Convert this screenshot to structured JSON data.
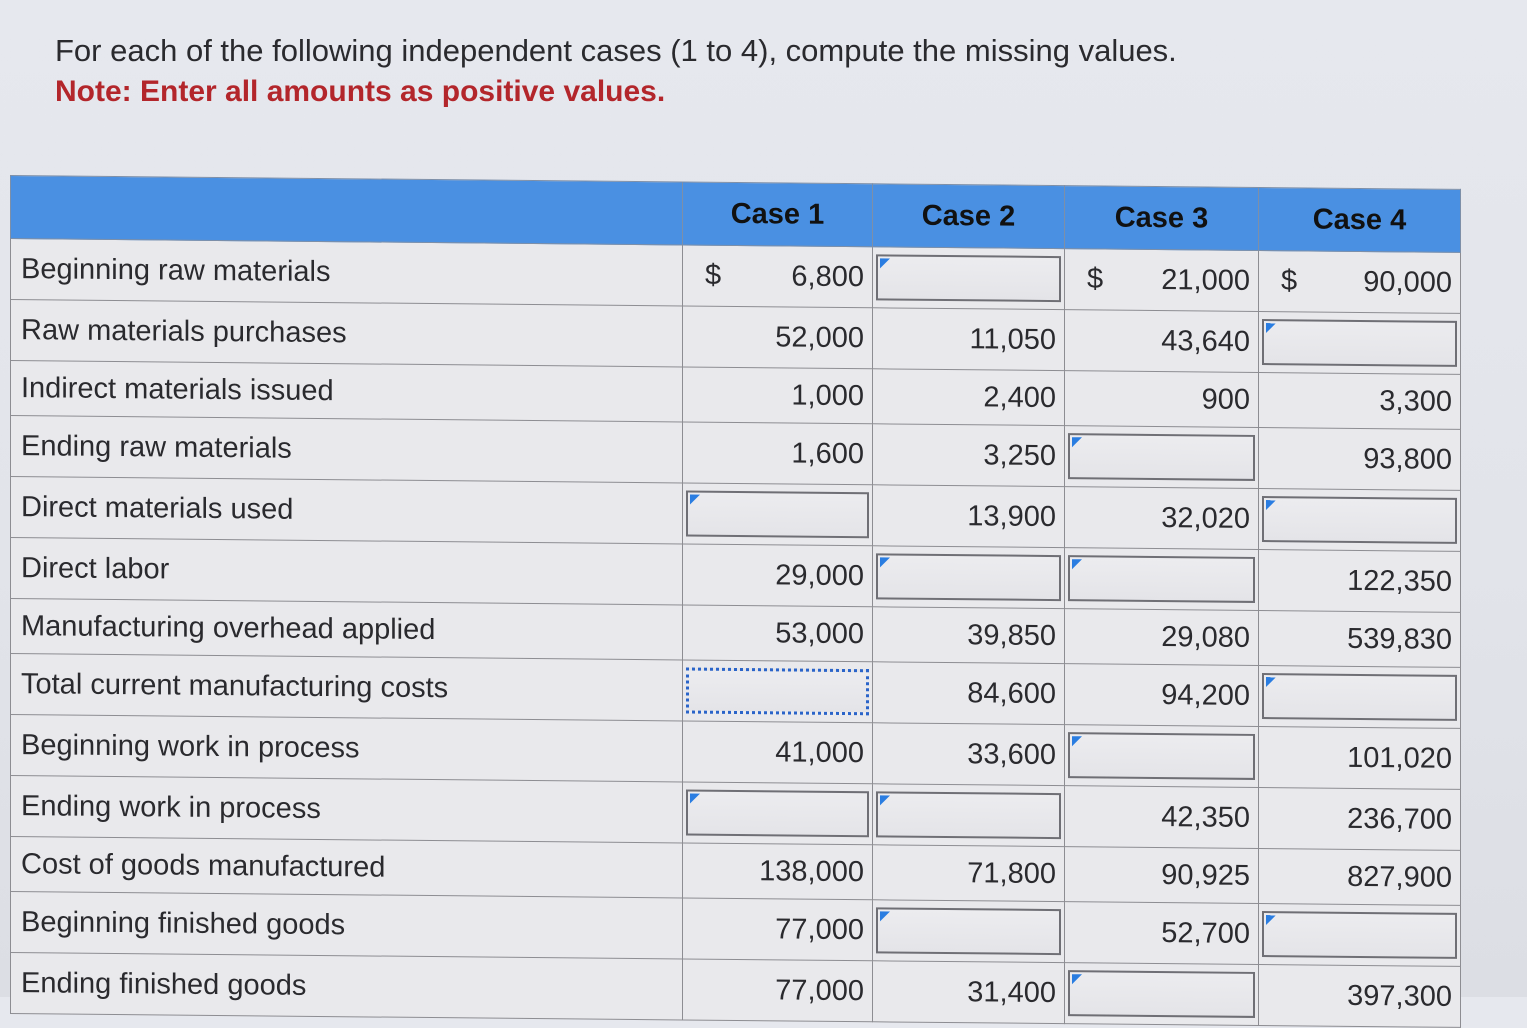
{
  "instructions": {
    "line1": "For each of the following independent cases (1 to 4), compute the missing values.",
    "note": "Note: Enter all amounts as positive values."
  },
  "table": {
    "headers": [
      "",
      "Case 1",
      "Case 2",
      "Case 3",
      "Case 4"
    ],
    "rows": [
      {
        "label": "Beginning raw materials",
        "cells": [
          {
            "type": "value",
            "prefix": "$",
            "value": "6,800"
          },
          {
            "type": "input"
          },
          {
            "type": "value",
            "prefix": "$",
            "value": "21,000"
          },
          {
            "type": "value",
            "prefix": "$",
            "value": "90,000"
          }
        ]
      },
      {
        "label": "Raw materials purchases",
        "cells": [
          {
            "type": "value",
            "value": "52,000"
          },
          {
            "type": "value",
            "value": "11,050"
          },
          {
            "type": "value",
            "value": "43,640"
          },
          {
            "type": "input"
          }
        ]
      },
      {
        "label": "Indirect materials issued",
        "cells": [
          {
            "type": "value",
            "value": "1,000"
          },
          {
            "type": "value",
            "value": "2,400"
          },
          {
            "type": "value",
            "value": "900"
          },
          {
            "type": "value",
            "value": "3,300"
          }
        ]
      },
      {
        "label": "Ending raw materials",
        "cells": [
          {
            "type": "value",
            "value": "1,600"
          },
          {
            "type": "value",
            "value": "3,250"
          },
          {
            "type": "input"
          },
          {
            "type": "value",
            "value": "93,800"
          }
        ]
      },
      {
        "label": "Direct materials used",
        "cells": [
          {
            "type": "input"
          },
          {
            "type": "value",
            "value": "13,900"
          },
          {
            "type": "value",
            "value": "32,020"
          },
          {
            "type": "input"
          }
        ]
      },
      {
        "label": "Direct labor",
        "cells": [
          {
            "type": "value",
            "value": "29,000"
          },
          {
            "type": "input"
          },
          {
            "type": "input"
          },
          {
            "type": "value",
            "value": "122,350"
          }
        ]
      },
      {
        "label": "Manufacturing overhead applied",
        "cells": [
          {
            "type": "value",
            "value": "53,000"
          },
          {
            "type": "value",
            "value": "39,850"
          },
          {
            "type": "value",
            "value": "29,080"
          },
          {
            "type": "value",
            "value": "539,830"
          }
        ]
      },
      {
        "label": "Total current manufacturing costs",
        "cells": [
          {
            "type": "input",
            "focused": true
          },
          {
            "type": "value",
            "value": "84,600"
          },
          {
            "type": "value",
            "value": "94,200"
          },
          {
            "type": "input"
          }
        ]
      },
      {
        "label": "Beginning work in process",
        "cells": [
          {
            "type": "value",
            "value": "41,000"
          },
          {
            "type": "value",
            "value": "33,600"
          },
          {
            "type": "input"
          },
          {
            "type": "value",
            "value": "101,020"
          }
        ]
      },
      {
        "label": "Ending work in process",
        "cells": [
          {
            "type": "input"
          },
          {
            "type": "input"
          },
          {
            "type": "value",
            "value": "42,350"
          },
          {
            "type": "value",
            "value": "236,700"
          }
        ]
      },
      {
        "label": "Cost of goods manufactured",
        "cells": [
          {
            "type": "value",
            "value": "138,000"
          },
          {
            "type": "value",
            "value": "71,800"
          },
          {
            "type": "value",
            "value": "90,925"
          },
          {
            "type": "value",
            "value": "827,900"
          }
        ]
      },
      {
        "label": "Beginning finished goods",
        "cells": [
          {
            "type": "value",
            "value": "77,000"
          },
          {
            "type": "input"
          },
          {
            "type": "value",
            "value": "52,700"
          },
          {
            "type": "input"
          }
        ]
      },
      {
        "label": "Ending finished goods",
        "cells": [
          {
            "type": "value",
            "value": "77,000"
          },
          {
            "type": "value",
            "value": "31,400"
          },
          {
            "type": "input"
          },
          {
            "type": "value",
            "value": "397,300"
          }
        ]
      }
    ]
  }
}
